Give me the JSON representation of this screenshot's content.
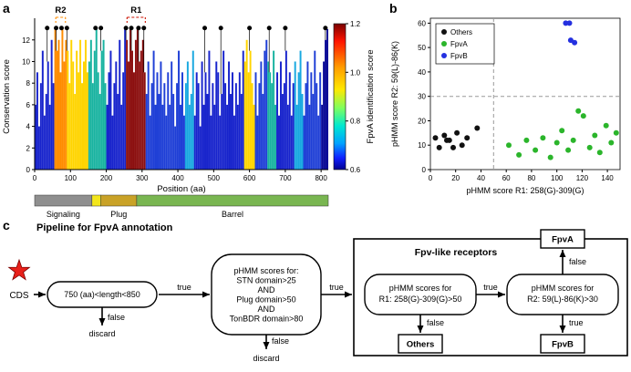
{
  "figure": {
    "panel_a_label": "a",
    "panel_b_label": "b",
    "panel_c_label": "c"
  },
  "chart_data": [
    {
      "type": "bar",
      "panel": "a",
      "title": "",
      "xlabel": "Position (aa)",
      "ylabel": "Conservation score",
      "xlim": [
        0,
        820
      ],
      "ylim": [
        0,
        13.5
      ],
      "xticks": [
        0,
        100,
        200,
        300,
        400,
        500,
        600,
        700,
        800
      ],
      "yticks": [
        0,
        2,
        4,
        6,
        8,
        10,
        12
      ],
      "bar_width_aa": 5,
      "heights": [
        6,
        9,
        4,
        8,
        11,
        5,
        7,
        10,
        6,
        12,
        8,
        13,
        11,
        12,
        9,
        13,
        10,
        12,
        11,
        8,
        12,
        10,
        7,
        11,
        9,
        12,
        8,
        10,
        12,
        9,
        10,
        12,
        8,
        11,
        13,
        9,
        7,
        11,
        12,
        8,
        6,
        9,
        11,
        5,
        8,
        10,
        7,
        12,
        6,
        9,
        13,
        12,
        10,
        13,
        11,
        9,
        12,
        13,
        10,
        11,
        12,
        9,
        7,
        10,
        5,
        8,
        11,
        6,
        9,
        7,
        10,
        6,
        8,
        5,
        9,
        6,
        10,
        7,
        4,
        8,
        11,
        6,
        9,
        5,
        8,
        10,
        6,
        7,
        11,
        5,
        9,
        8,
        4,
        10,
        6,
        9,
        7,
        11,
        5,
        8,
        6,
        10,
        9,
        5,
        7,
        11,
        8,
        6,
        10,
        7,
        9,
        5,
        8,
        6,
        9,
        7,
        11,
        10,
        12,
        9,
        11,
        8,
        6,
        9,
        5,
        8,
        10,
        7,
        11,
        12,
        10,
        9,
        8,
        11,
        6,
        9,
        5,
        10,
        7,
        8,
        11,
        6,
        9,
        5,
        8,
        10,
        6,
        9,
        11,
        7,
        5,
        8,
        10,
        6,
        9,
        7,
        11,
        8,
        5,
        9,
        6,
        10,
        12,
        13
      ],
      "color_regions": [
        {
          "start": 0,
          "end": 55,
          "color": "#1824cc"
        },
        {
          "start": 55,
          "end": 90,
          "color": "#ff8c00"
        },
        {
          "start": 90,
          "end": 150,
          "color": "#ffd400"
        },
        {
          "start": 150,
          "end": 200,
          "color": "#19b3a0"
        },
        {
          "start": 200,
          "end": 255,
          "color": "#1824cc"
        },
        {
          "start": 255,
          "end": 310,
          "color": "#8c1010"
        },
        {
          "start": 310,
          "end": 420,
          "color": "#1f3fd6"
        },
        {
          "start": 420,
          "end": 445,
          "color": "#18a8e0"
        },
        {
          "start": 445,
          "end": 585,
          "color": "#1824cc"
        },
        {
          "start": 585,
          "end": 612,
          "color": "#ffd400"
        },
        {
          "start": 612,
          "end": 648,
          "color": "#1f3fd6"
        },
        {
          "start": 648,
          "end": 672,
          "color": "#19b3a0"
        },
        {
          "start": 672,
          "end": 725,
          "color": "#1824cc"
        },
        {
          "start": 725,
          "end": 748,
          "color": "#18a8e0"
        },
        {
          "start": 748,
          "end": 800,
          "color": "#1f3fd6"
        },
        {
          "start": 800,
          "end": 820,
          "color": "#0a0a96"
        }
      ],
      "peaks_aa": [
        35,
        60,
        75,
        90,
        170,
        185,
        255,
        270,
        290,
        305,
        475,
        520,
        600,
        655,
        700,
        812
      ],
      "annotations": [
        {
          "label": "R2",
          "color": "#ff8c00",
          "start": 59,
          "end": 86
        },
        {
          "label": "R1",
          "color": "#cc1100",
          "start": 258,
          "end": 309
        }
      ],
      "colorbar": {
        "label": "FpvA identification score",
        "min": 0.6,
        "max": 1.2,
        "ticks": [
          "1.2",
          "1.0",
          "0.8",
          "0.6"
        ]
      }
    },
    {
      "type": "scatter",
      "panel": "b",
      "xlabel": "pHMM score R1: 258(G)-309(G)",
      "ylabel": "pHMM score R2: 59(L)-86(K)",
      "xlim": [
        0,
        150
      ],
      "ylim": [
        0,
        62
      ],
      "xticks": [
        0,
        20,
        40,
        60,
        80,
        100,
        120,
        140
      ],
      "yticks": [
        0,
        10,
        20,
        30,
        40,
        50,
        60
      ],
      "thresholds": {
        "x": 50,
        "y": 30
      },
      "legend_position": "top-left",
      "series": [
        {
          "name": "Others",
          "color": "#111111",
          "points": [
            [
              4,
              13
            ],
            [
              7,
              9
            ],
            [
              11,
              14
            ],
            [
              15,
              12
            ],
            [
              18,
              9
            ],
            [
              21,
              15
            ],
            [
              25,
              10
            ],
            [
              29,
              13
            ],
            [
              37,
              17
            ],
            [
              13,
              12
            ]
          ]
        },
        {
          "name": "FpvA",
          "color": "#2bb52b",
          "points": [
            [
              62,
              10
            ],
            [
              70,
              6
            ],
            [
              76,
              12
            ],
            [
              83,
              8
            ],
            [
              89,
              13
            ],
            [
              95,
              5
            ],
            [
              100,
              11
            ],
            [
              104,
              16
            ],
            [
              109,
              8
            ],
            [
              113,
              12
            ],
            [
              117,
              24
            ],
            [
              121,
              22
            ],
            [
              126,
              9
            ],
            [
              130,
              14
            ],
            [
              134,
              7
            ],
            [
              139,
              18
            ],
            [
              143,
              11
            ],
            [
              147,
              15
            ]
          ]
        },
        {
          "name": "FpvB",
          "color": "#2430e0",
          "points": [
            [
              107,
              60
            ],
            [
              110,
              60
            ],
            [
              111,
              53
            ],
            [
              114,
              52
            ]
          ]
        }
      ]
    }
  ],
  "domain_bar": {
    "segments": [
      {
        "label": "Signaling",
        "color": "#8f8f8f",
        "start": 0,
        "end": 160
      },
      {
        "label": "",
        "color": "#f3e61c",
        "start": 160,
        "end": 185
      },
      {
        "label": "Plug",
        "color": "#c9a227",
        "start": 185,
        "end": 285
      },
      {
        "label": "Barrel",
        "color": "#79b651",
        "start": 285,
        "end": 820
      }
    ]
  },
  "flowchart": {
    "title": "Pipeline for FpvA annotation",
    "start_label": "CDS",
    "true_label": "true",
    "false_label": "false",
    "discard_label": "discard",
    "box_length": "750 (aa)<length<850",
    "box_domains": [
      "pHMM scores for:",
      "STN domain>25",
      "AND",
      "Plug domain>50",
      "AND",
      "TonBDR domain>80"
    ],
    "group_title": "Fpv-like receptors",
    "box_r1": [
      "pHMM scores for",
      "R1: 258(G)-309(G)>50"
    ],
    "box_r2": [
      "pHMM scores for",
      "R2: 59(L)-86(K)>30"
    ],
    "others_label": "Others",
    "fpva_label": "FpvA",
    "fpvb_label": "FpvB",
    "star_color": "#e8201a"
  }
}
